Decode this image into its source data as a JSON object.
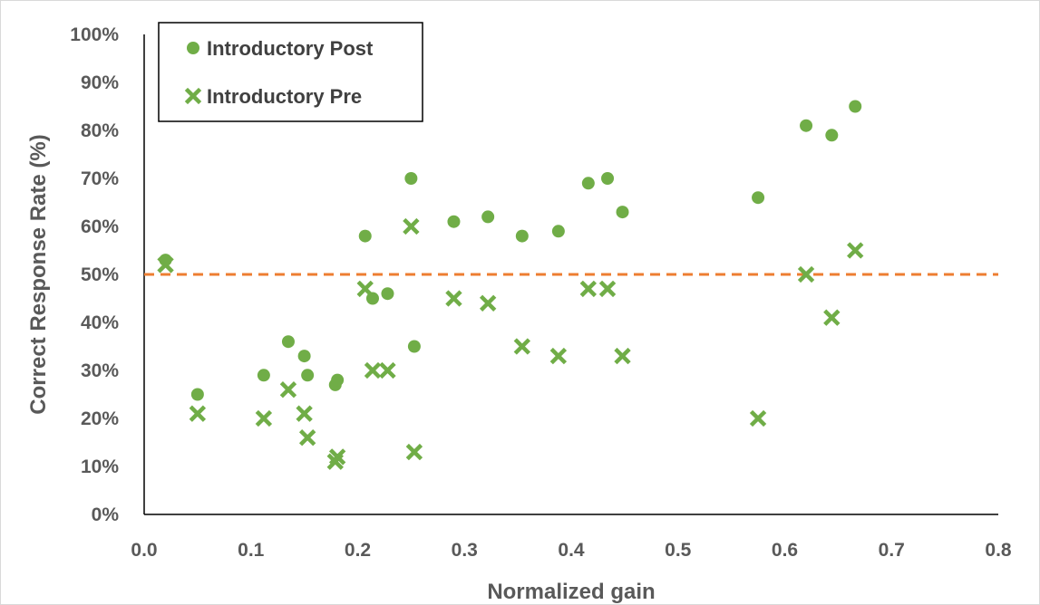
{
  "chart_data": {
    "type": "scatter",
    "xlabel": "Normalized gain",
    "ylabel": "Correct Response Rate (%)",
    "xlim": [
      0,
      0.8
    ],
    "ylim": [
      0,
      100
    ],
    "x_ticks": [
      "0.0",
      "0.1",
      "0.2",
      "0.3",
      "0.4",
      "0.5",
      "0.6",
      "0.7",
      "0.8"
    ],
    "y_ticks": [
      "0%",
      "10%",
      "20%",
      "30%",
      "40%",
      "50%",
      "60%",
      "70%",
      "80%",
      "90%",
      "100%"
    ],
    "grid": false,
    "legend_placement": "top-left",
    "reference_line": {
      "y": 50,
      "style": "dashed",
      "color": "#ED7D31"
    },
    "series": [
      {
        "name": "Introductory Post",
        "marker": "circle",
        "color": "#70AD47",
        "points": [
          [
            0.02,
            53
          ],
          [
            0.05,
            25
          ],
          [
            0.112,
            29
          ],
          [
            0.135,
            36
          ],
          [
            0.15,
            33
          ],
          [
            0.153,
            29
          ],
          [
            0.179,
            27
          ],
          [
            0.181,
            28
          ],
          [
            0.207,
            58
          ],
          [
            0.214,
            45
          ],
          [
            0.228,
            46
          ],
          [
            0.25,
            70
          ],
          [
            0.253,
            35
          ],
          [
            0.29,
            61
          ],
          [
            0.322,
            62
          ],
          [
            0.354,
            58
          ],
          [
            0.388,
            59
          ],
          [
            0.416,
            69
          ],
          [
            0.434,
            70
          ],
          [
            0.448,
            63
          ],
          [
            0.575,
            66
          ],
          [
            0.62,
            81
          ],
          [
            0.644,
            79
          ],
          [
            0.666,
            85
          ]
        ]
      },
      {
        "name": "Introductory Pre",
        "marker": "x",
        "color": "#70AD47",
        "points": [
          [
            0.02,
            52
          ],
          [
            0.05,
            21
          ],
          [
            0.112,
            20
          ],
          [
            0.135,
            26
          ],
          [
            0.15,
            21
          ],
          [
            0.153,
            16
          ],
          [
            0.179,
            11
          ],
          [
            0.181,
            12
          ],
          [
            0.207,
            47
          ],
          [
            0.214,
            30
          ],
          [
            0.228,
            30
          ],
          [
            0.25,
            60
          ],
          [
            0.253,
            13
          ],
          [
            0.29,
            45
          ],
          [
            0.322,
            44
          ],
          [
            0.354,
            35
          ],
          [
            0.388,
            33
          ],
          [
            0.416,
            47
          ],
          [
            0.434,
            47
          ],
          [
            0.448,
            33
          ],
          [
            0.575,
            20
          ],
          [
            0.62,
            50
          ],
          [
            0.644,
            41
          ],
          [
            0.666,
            55
          ]
        ]
      }
    ]
  }
}
